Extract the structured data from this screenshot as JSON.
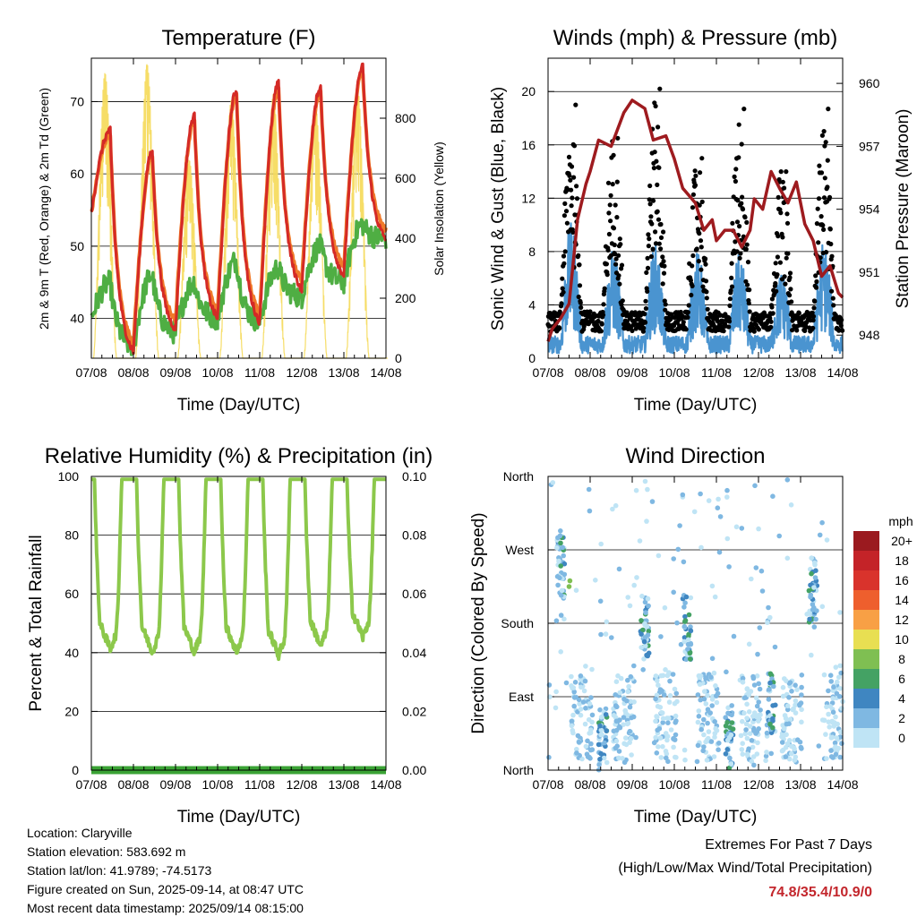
{
  "footer": {
    "location": "Location: Claryville",
    "elevation": "Station elevation: 583.692 m",
    "latlon": "Station lat/lon: 41.9789; -74.5173",
    "created": "Figure created on Sun, 2025-09-14, at 08:47 UTC",
    "recent": "Most recent data timestamp: 2025/09/14 08:15:00",
    "extremes_title": "Extremes For Past 7 Days",
    "extremes_sub": "(High/Low/Max Wind/Total Precipitation)",
    "extremes_values": "74.8/35.4/10.9/0"
  },
  "colors": {
    "temp_2m": "#d42a26",
    "temp_9m": "#f07a2a",
    "dewpoint": "#4fae43",
    "solar": "#f6db5f",
    "gust": "#000000",
    "wind": "#4a94d0",
    "pressure": "#9e1b1f",
    "rh": "#8cc84b",
    "precip": "#3aa335",
    "extremes": "#c3262c"
  },
  "chart_data": [
    {
      "type": "line",
      "title": "Temperature (F)",
      "xlabel": "Time (Day/UTC)",
      "ylabel": "2m & 9m T (Red, Orange) & 2m Td (Green)",
      "y2label": "Solar Insolation (Yellow)",
      "x_ticks": [
        "07/08",
        "08/08",
        "09/08",
        "10/08",
        "11/08",
        "12/08",
        "13/08",
        "14/08"
      ],
      "ylim": [
        34.5,
        76
      ],
      "y_ticks": [
        40,
        50,
        60,
        70
      ],
      "y2lim": [
        0,
        1000
      ],
      "y2_ticks": [
        0,
        200,
        400,
        600,
        800
      ],
      "grid": true,
      "daily_max_temp": [
        66,
        63,
        68,
        71.5,
        72.5,
        72,
        74.8
      ],
      "daily_min_temp": [
        54.5,
        35.4,
        38.5,
        40,
        39.5,
        44,
        46,
        51
      ],
      "daily_min_dewpoint": [
        40,
        36,
        38,
        40,
        39.5,
        43,
        45,
        51
      ],
      "daily_max_dewpoint": [
        45,
        46,
        45,
        48,
        47,
        50,
        53,
        57
      ],
      "daily_peak_solar": [
        950,
        980,
        660,
        860,
        880,
        840,
        900
      ],
      "series": [
        {
          "name": "2m T",
          "color_key": "temp_2m"
        },
        {
          "name": "9m T",
          "color_key": "temp_9m"
        },
        {
          "name": "2m Td",
          "color_key": "dewpoint"
        },
        {
          "name": "Solar Insolation",
          "color_key": "solar"
        }
      ]
    },
    {
      "type": "scatter",
      "title": "Winds (mph) & Pressure (mb)",
      "xlabel": "Time (Day/UTC)",
      "ylabel": "Sonic Wind & Gust (Blue, Black)",
      "y2label": "Station Pressure (Maroon)",
      "x_ticks": [
        "07/08",
        "08/08",
        "09/08",
        "10/08",
        "11/08",
        "12/08",
        "13/08",
        "14/08"
      ],
      "ylim": [
        0,
        22.5
      ],
      "y_ticks": [
        0,
        4,
        8,
        12,
        16,
        20
      ],
      "y2lim": [
        946.9,
        961.2
      ],
      "y2_ticks": [
        948,
        951,
        954,
        957,
        960
      ],
      "grid": true,
      "daily_peak_gust": [
        19,
        16.5,
        20.2,
        15,
        18.7,
        14,
        18.7
      ],
      "daily_peak_wind": [
        11,
        8.5,
        9,
        8.3,
        8,
        6.5,
        9.5
      ],
      "pressure_x": [
        0,
        0.1,
        0.3,
        0.5,
        0.7,
        0.9,
        1.0,
        1.2,
        1.5,
        1.8,
        2.0,
        2.3,
        2.5,
        2.8,
        3.0,
        3.2,
        3.5,
        3.7,
        3.9,
        4.0,
        4.2,
        4.4,
        4.6,
        4.8,
        4.9,
        5.1,
        5.3,
        5.5,
        5.7,
        5.9,
        6.1,
        6.3,
        6.5,
        6.7,
        6.9,
        7.0
      ],
      "pressure_y": [
        947.7,
        948.3,
        948.8,
        949.5,
        953.5,
        955.2,
        955.8,
        957.3,
        957.0,
        958.6,
        959.2,
        958.8,
        957.3,
        957.5,
        956.4,
        955.0,
        954.3,
        953.0,
        953.5,
        952.5,
        953.0,
        953.0,
        952.2,
        953.0,
        954.5,
        954.0,
        955.8,
        955.0,
        954.3,
        955.3,
        953.3,
        952.5,
        950.8,
        951.3,
        950.0,
        949.8
      ],
      "series": [
        {
          "name": "Sonic Wind",
          "color_key": "wind"
        },
        {
          "name": "Gust",
          "color_key": "gust"
        },
        {
          "name": "Station Pressure",
          "color_key": "pressure"
        }
      ]
    },
    {
      "type": "line",
      "title": "Relative Humidity (%) & Precipitation (in)",
      "xlabel": "Time (Day/UTC)",
      "ylabel": "Percent & Total Rainfall",
      "x_ticks": [
        "07/08",
        "08/08",
        "09/08",
        "10/08",
        "11/08",
        "12/08",
        "13/08",
        "14/08"
      ],
      "ylim": [
        0,
        100
      ],
      "y_ticks": [
        0,
        20,
        40,
        60,
        80,
        100
      ],
      "y2lim": [
        0,
        0.1
      ],
      "y2_ticks": [
        "0.00",
        "0.02",
        "0.04",
        "0.06",
        "0.08",
        "0.10"
      ],
      "grid": true,
      "daily_min_rh": [
        41,
        40,
        40,
        40,
        39,
        42,
        45
      ],
      "total_precip": 0,
      "series": [
        {
          "name": "Relative Humidity",
          "color_key": "rh"
        },
        {
          "name": "Precipitation",
          "color_key": "precip"
        }
      ]
    },
    {
      "type": "scatter",
      "title": "Wind Direction",
      "xlabel": "Time (Day/UTC)",
      "ylabel": "Direction (Colored By Speed)",
      "x_ticks": [
        "07/08",
        "08/08",
        "09/08",
        "10/08",
        "11/08",
        "12/08",
        "13/08",
        "14/08"
      ],
      "y_ticks": [
        "North",
        "East",
        "South",
        "West",
        "North"
      ],
      "legend": {
        "title": "mph",
        "position": "right",
        "labels": [
          "20+",
          "18",
          "16",
          "14",
          "12",
          "10",
          "8",
          "6",
          "4",
          "2",
          "0"
        ],
        "colors": [
          "#9b1a1f",
          "#c42328",
          "#d9332c",
          "#ee5f2d",
          "#f8a045",
          "#e8df52",
          "#7fbf52",
          "#44a264",
          "#3f86c1",
          "#7fb8e2",
          "#bfe4f5"
        ]
      }
    }
  ]
}
